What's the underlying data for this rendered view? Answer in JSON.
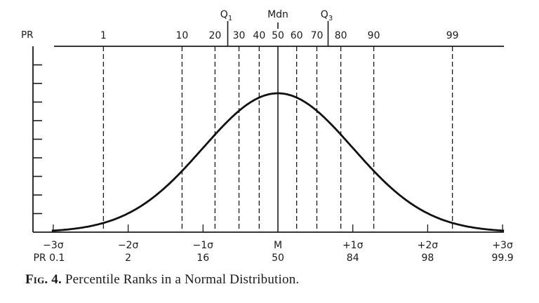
{
  "chart_data": {
    "type": "line",
    "title": "Percentile Ranks in a Normal Distribution",
    "caption": {
      "prefix": "Fig.",
      "number": "4.",
      "text": "Percentile Ranks in a Normal Distribution."
    },
    "curve": "standard normal density",
    "mean": 0,
    "sd": 1,
    "x_range_sigma": [
      -3,
      3
    ],
    "top_axis": {
      "label": "PR",
      "ticks": [
        {
          "label": "1",
          "z": -2.33
        },
        {
          "label": "10",
          "z": -1.28
        },
        {
          "label": "20",
          "z": -0.84
        },
        {
          "label": "30",
          "z": -0.52
        },
        {
          "label": "40",
          "z": -0.25
        },
        {
          "label": "50",
          "z": 0.0
        },
        {
          "label": "60",
          "z": 0.25
        },
        {
          "label": "70",
          "z": 0.52
        },
        {
          "label": "80",
          "z": 0.84
        },
        {
          "label": "90",
          "z": 1.28
        },
        {
          "label": "99",
          "z": 2.33
        }
      ],
      "markers": [
        {
          "label": "Q",
          "sub": "1",
          "z": -0.67
        },
        {
          "label": "Mdn",
          "sub": "",
          "z": 0.0
        },
        {
          "label": "Q",
          "sub": "3",
          "z": 0.67
        }
      ]
    },
    "bottom_axis": {
      "sigma_labels": [
        "−3σ",
        "−2σ",
        "−1σ",
        "M",
        "+1σ",
        "+2σ",
        "+3σ"
      ],
      "z": [
        -3,
        -2,
        -1,
        0,
        1,
        2,
        3
      ],
      "pr_prefix": "PR",
      "pr_values": [
        "0.1",
        "2",
        "16",
        "50",
        "84",
        "98",
        "99.9"
      ]
    },
    "y_axis": {
      "ticks": 9,
      "labels": []
    },
    "grid": false,
    "legend": null
  }
}
